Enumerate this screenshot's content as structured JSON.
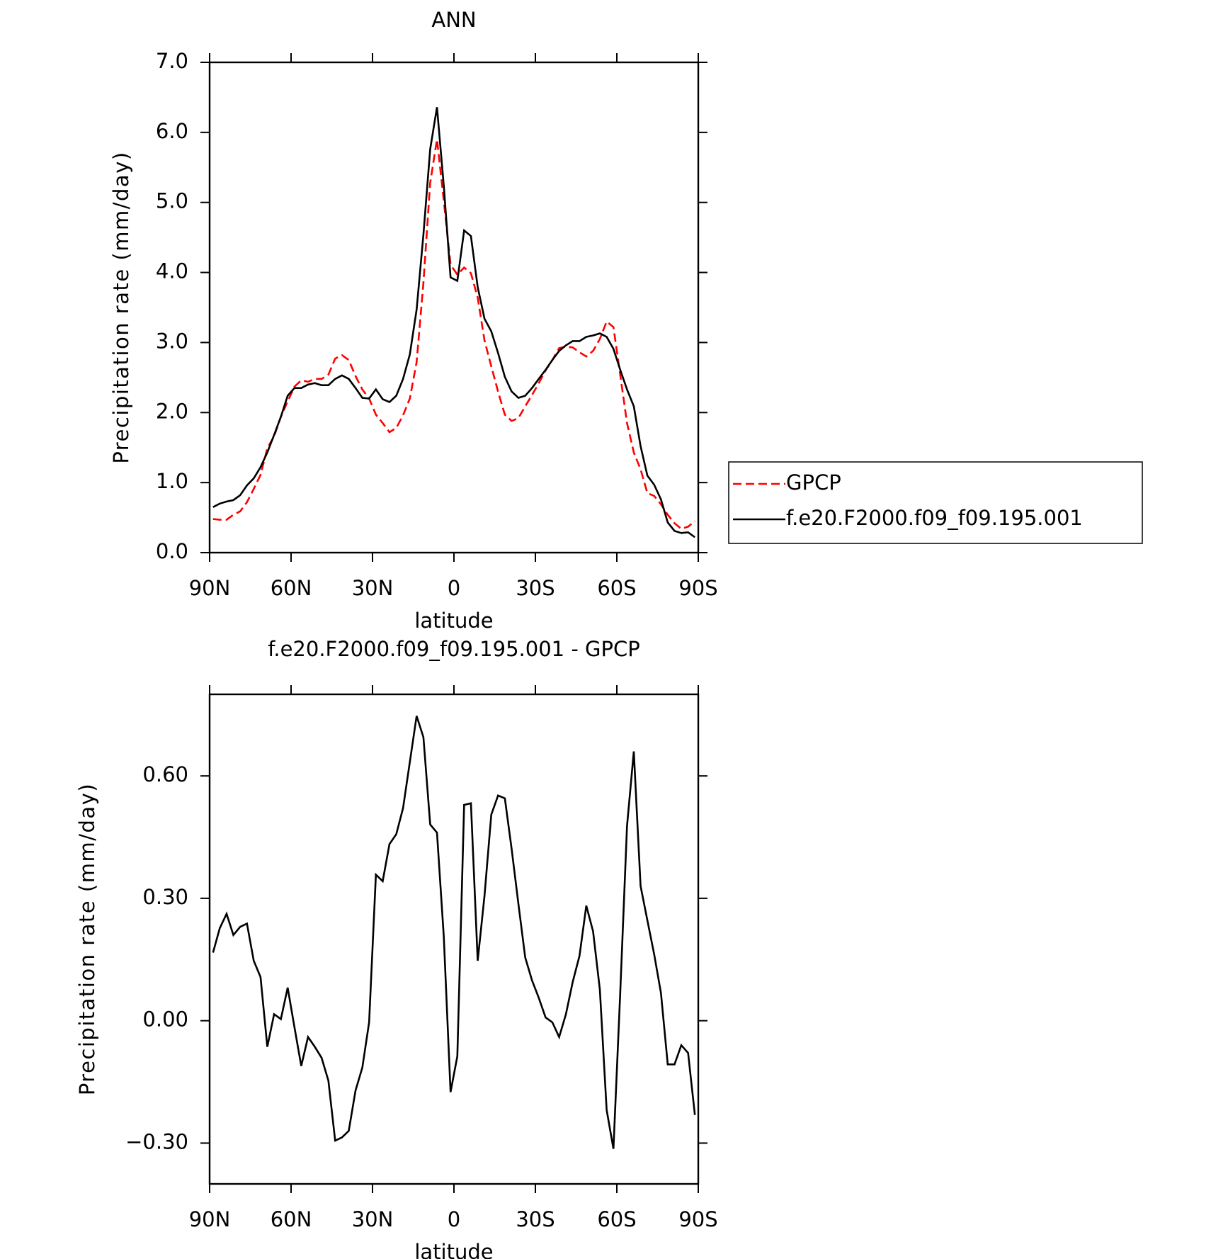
{
  "chart_data": [
    {
      "type": "line",
      "title": "ANN",
      "x_label": "latitude",
      "y_label": "Precipitation rate (mm/day)",
      "x": [
        88.75,
        86.25,
        83.75,
        81.25,
        78.75,
        76.25,
        73.75,
        71.25,
        68.75,
        66.25,
        63.75,
        61.25,
        58.75,
        56.25,
        53.75,
        51.25,
        48.75,
        46.25,
        43.75,
        41.25,
        38.75,
        36.25,
        33.75,
        31.25,
        28.75,
        26.25,
        23.75,
        21.25,
        18.75,
        16.25,
        13.75,
        11.25,
        8.75,
        6.25,
        3.75,
        1.25,
        -1.25,
        -3.75,
        -6.25,
        -8.75,
        -11.25,
        -13.75,
        -16.25,
        -18.75,
        -21.25,
        -23.75,
        -26.25,
        -28.75,
        -31.25,
        -33.75,
        -36.25,
        -38.75,
        -41.25,
        -43.75,
        -46.25,
        -48.75,
        -51.25,
        -53.75,
        -56.25,
        -58.75,
        -61.25,
        -63.75,
        -66.25,
        -68.75,
        -71.25,
        -73.75,
        -76.25,
        -78.75,
        -81.25,
        -83.75,
        -86.25,
        -88.75
      ],
      "series": [
        {
          "name": "GPCP",
          "color": "#ff0000",
          "style": "dashed",
          "values": [
            0.48,
            0.47,
            0.47,
            0.54,
            0.59,
            0.72,
            0.91,
            1.11,
            1.49,
            1.66,
            1.94,
            2.16,
            2.37,
            2.46,
            2.44,
            2.48,
            2.48,
            2.54,
            2.77,
            2.82,
            2.75,
            2.52,
            2.33,
            2.2,
            1.97,
            1.85,
            1.72,
            1.78,
            1.96,
            2.2,
            2.72,
            3.85,
            5.28,
            5.9,
            5.03,
            4.11,
            3.97,
            4.07,
            3.99,
            3.64,
            3.03,
            2.66,
            2.3,
            1.97,
            1.88,
            1.92,
            2.09,
            2.25,
            2.42,
            2.6,
            2.75,
            2.92,
            2.94,
            2.93,
            2.86,
            2.8,
            2.88,
            3.05,
            3.3,
            3.22,
            2.54,
            1.85,
            1.43,
            1.19,
            0.85,
            0.81,
            0.69,
            0.54,
            0.42,
            0.34,
            0.37,
            0.45
          ]
        },
        {
          "name": "f.e20.F2000.f09_f09.195.001",
          "color": "#000000",
          "style": "solid",
          "values": [
            0.65,
            0.7,
            0.73,
            0.75,
            0.82,
            0.96,
            1.06,
            1.22,
            1.43,
            1.68,
            1.94,
            2.24,
            2.35,
            2.35,
            2.4,
            2.42,
            2.39,
            2.39,
            2.48,
            2.53,
            2.48,
            2.35,
            2.21,
            2.2,
            2.33,
            2.19,
            2.15,
            2.24,
            2.48,
            2.83,
            3.47,
            4.54,
            5.76,
            6.36,
            5.24,
            3.93,
            3.88,
            4.6,
            4.52,
            3.79,
            3.34,
            3.16,
            2.85,
            2.51,
            2.3,
            2.21,
            2.24,
            2.35,
            2.48,
            2.61,
            2.75,
            2.88,
            2.96,
            3.02,
            3.02,
            3.08,
            3.1,
            3.13,
            3.08,
            2.91,
            2.61,
            2.33,
            2.09,
            1.52,
            1.1,
            0.97,
            0.76,
            0.43,
            0.31,
            0.28,
            0.29,
            0.22
          ]
        }
      ],
      "xlim": [
        90,
        -90
      ],
      "xticks": [
        {
          "value": 90,
          "label": "90N"
        },
        {
          "value": 60,
          "label": "60N"
        },
        {
          "value": 30,
          "label": "30N"
        },
        0,
        {
          "value": -30,
          "label": "30S"
        },
        {
          "value": -60,
          "label": "60S"
        },
        {
          "value": -90,
          "label": "90S"
        }
      ],
      "ylim": [
        0,
        7
      ],
      "yticks": [
        {
          "value": 0,
          "label": "0.0"
        },
        {
          "value": 1,
          "label": "1.0"
        },
        {
          "value": 2,
          "label": "2.0"
        },
        {
          "value": 3,
          "label": "3.0"
        },
        {
          "value": 4,
          "label": "4.0"
        },
        {
          "value": 5,
          "label": "5.0"
        },
        {
          "value": 6,
          "label": "6.0"
        },
        {
          "value": 7,
          "label": "7.0"
        }
      ],
      "legend": "right"
    },
    {
      "type": "line",
      "title": "f.e20.F2000.f09_f09.195.001 - GPCP",
      "x_label": "latitude",
      "y_label": "Precipitation rate (mm/day)",
      "x": [
        88.75,
        86.25,
        83.75,
        81.25,
        78.75,
        76.25,
        73.75,
        71.25,
        68.75,
        66.25,
        63.75,
        61.25,
        58.75,
        56.25,
        53.75,
        51.25,
        48.75,
        46.25,
        43.75,
        41.25,
        38.75,
        36.25,
        33.75,
        31.25,
        28.75,
        26.25,
        23.75,
        21.25,
        18.75,
        16.25,
        13.75,
        11.25,
        8.75,
        6.25,
        3.75,
        1.25,
        -1.25,
        -3.75,
        -6.25,
        -8.75,
        -11.25,
        -13.75,
        -16.25,
        -18.75,
        -21.25,
        -23.75,
        -26.25,
        -28.75,
        -31.25,
        -33.75,
        -36.25,
        -38.75,
        -41.25,
        -43.75,
        -46.25,
        -48.75,
        -51.25,
        -53.75,
        -56.25,
        -58.75,
        -61.25,
        -63.75,
        -66.25,
        -68.75,
        -71.25,
        -73.75,
        -76.25,
        -78.75,
        -81.25,
        -83.75,
        -86.25,
        -88.75
      ],
      "series": [
        {
          "color": "#000000",
          "style": "solid",
          "values": [
            0.167,
            0.227,
            0.262,
            0.21,
            0.23,
            0.238,
            0.147,
            0.107,
            -0.064,
            0.016,
            0.004,
            0.081,
            -0.016,
            -0.111,
            -0.04,
            -0.064,
            -0.091,
            -0.147,
            -0.294,
            -0.286,
            -0.27,
            -0.171,
            -0.115,
            -0.004,
            0.358,
            0.342,
            0.433,
            0.457,
            0.521,
            0.634,
            0.747,
            0.695,
            0.481,
            0.461,
            0.207,
            -0.175,
            -0.087,
            0.529,
            0.533,
            0.147,
            0.306,
            0.505,
            0.552,
            0.545,
            0.421,
            0.286,
            0.155,
            0.099,
            0.056,
            0.008,
            -0.004,
            -0.04,
            0.016,
            0.095,
            0.159,
            0.282,
            0.219,
            0.076,
            -0.219,
            -0.314,
            0.068,
            0.477,
            0.66,
            0.33,
            0.246,
            0.163,
            0.068,
            -0.107,
            -0.107,
            -0.06,
            -0.079,
            -0.231
          ]
        }
      ],
      "xlim": [
        90,
        -90
      ],
      "xticks": [
        {
          "value": 90,
          "label": "90N"
        },
        {
          "value": 60,
          "label": "60N"
        },
        {
          "value": 30,
          "label": "30N"
        },
        0,
        {
          "value": -30,
          "label": "30S"
        },
        {
          "value": -60,
          "label": "60S"
        },
        {
          "value": -90,
          "label": "90S"
        }
      ],
      "ylim": [
        -0.4,
        0.8
      ],
      "yticks": [
        {
          "value": -0.3,
          "label": "−0.30"
        },
        {
          "value": 0,
          "label": "0.00"
        },
        {
          "value": 0.3,
          "label": "0.30"
        },
        {
          "value": 0.6,
          "label": "0.60"
        }
      ]
    }
  ]
}
